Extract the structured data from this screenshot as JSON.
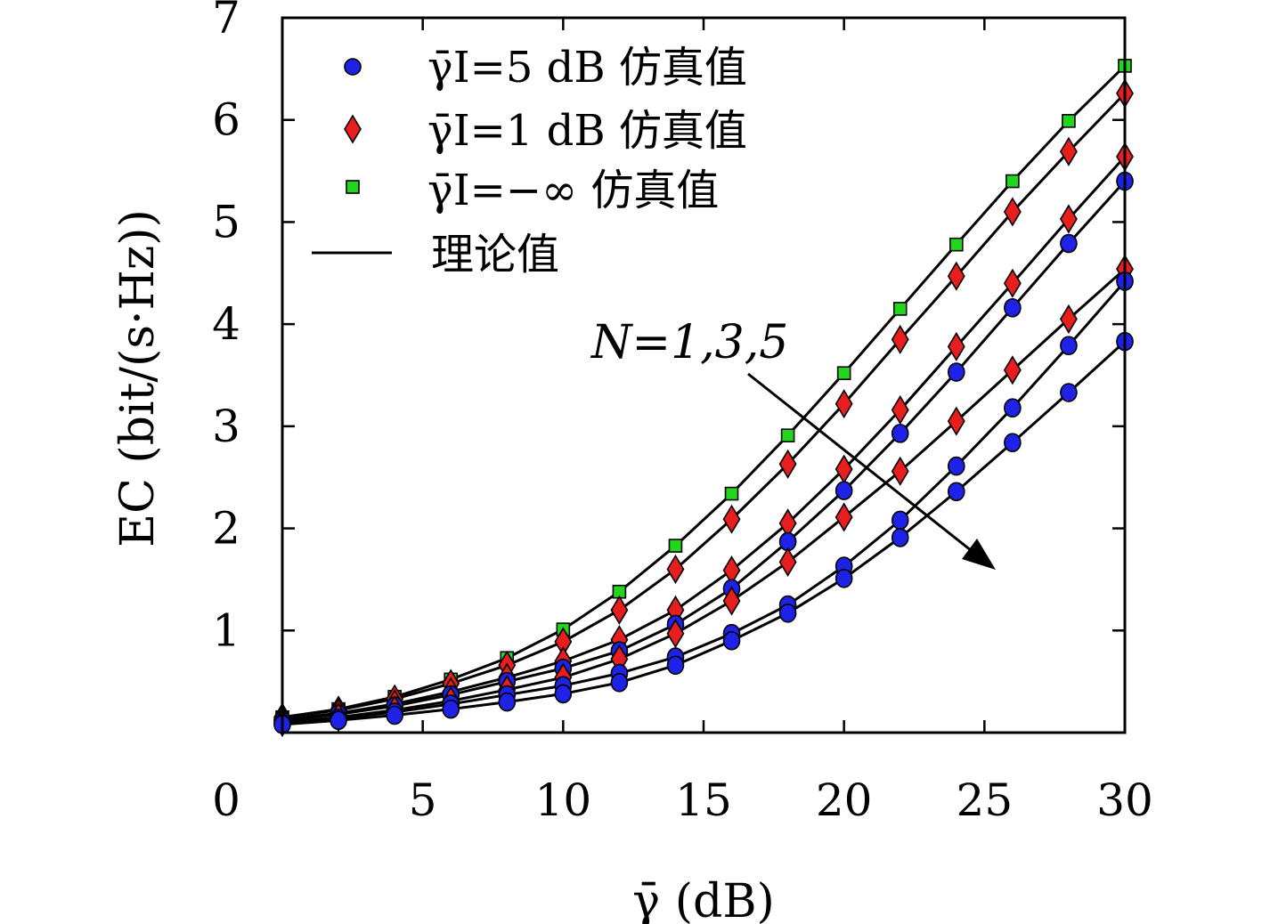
{
  "chart_data": {
    "type": "line",
    "title": "",
    "xlabel": "γ̄ (dB)",
    "ylabel": "EC (bit/(s·Hz))",
    "xlim": [
      0,
      30
    ],
    "ylim": [
      0,
      7
    ],
    "xticks": [
      0,
      5,
      10,
      15,
      20,
      25,
      30
    ],
    "yticks": [
      1,
      2,
      3,
      4,
      5,
      6,
      7
    ],
    "grid": false,
    "legend_position": "top-left",
    "legend": [
      {
        "label": "γ̄I=5 dB 仿真值",
        "marker": "circle",
        "color": "#1e22e6"
      },
      {
        "label": "γ̄I=1 dB 仿真值",
        "marker": "diamond",
        "color": "#e61e1e"
      },
      {
        "label": "γ̄I=−∞ 仿真值",
        "marker": "square",
        "color": "#22d61e"
      },
      {
        "label": "理论值",
        "marker": "line",
        "color": "#000000"
      }
    ],
    "annotation": "N=1,3,5",
    "x": [
      0,
      2,
      4,
      6,
      8,
      10,
      12,
      14,
      16,
      18,
      20,
      22,
      24,
      26,
      28,
      30
    ],
    "series": [
      {
        "name": "γ̄I=−∞ 仿真值",
        "marker": "square",
        "color": "#22d61e",
        "values": [
          0.15,
          0.23,
          0.35,
          0.52,
          0.73,
          1.01,
          1.38,
          1.83,
          2.34,
          2.91,
          3.52,
          4.15,
          4.78,
          5.4,
          5.99,
          6.53
        ]
      },
      {
        "name": "γ̄I=1 dB 仿真值",
        "marker": "diamond",
        "color": "#e61e1e",
        "values": [
          0.15,
          0.22,
          0.33,
          0.48,
          0.66,
          0.89,
          1.2,
          1.6,
          2.09,
          2.63,
          3.22,
          3.85,
          4.47,
          5.1,
          5.69,
          6.26
        ]
      },
      {
        "name": "γ̄I=1 dB 仿真值",
        "marker": "diamond",
        "color": "#e61e1e",
        "values": [
          0.13,
          0.19,
          0.28,
          0.4,
          0.54,
          0.7,
          0.91,
          1.2,
          1.59,
          2.05,
          2.58,
          3.16,
          3.78,
          4.4,
          5.03,
          5.64
        ]
      },
      {
        "name": "γ̄I=5 dB 仿真值",
        "marker": "circle",
        "color": "#1e22e6",
        "values": [
          0.12,
          0.18,
          0.26,
          0.37,
          0.5,
          0.63,
          0.8,
          1.06,
          1.41,
          1.87,
          2.37,
          2.93,
          3.53,
          4.16,
          4.79,
          5.4
        ]
      },
      {
        "name": "γ̄I=1 dB 仿真值",
        "marker": "diamond",
        "color": "#e61e1e",
        "values": [
          0.1,
          0.15,
          0.22,
          0.31,
          0.42,
          0.54,
          0.72,
          0.97,
          1.29,
          1.67,
          2.11,
          2.56,
          3.05,
          3.55,
          4.05,
          4.54
        ]
      },
      {
        "name": "γ̄I=5 dB 仿真值",
        "marker": "circle",
        "color": "#1e22e6",
        "values": [
          0.09,
          0.14,
          0.2,
          0.28,
          0.37,
          0.46,
          0.58,
          0.74,
          0.97,
          1.25,
          1.63,
          2.08,
          2.61,
          3.18,
          3.79,
          4.42
        ]
      },
      {
        "name": "γ̄I=5 dB 仿真值",
        "marker": "circle",
        "color": "#1e22e6",
        "values": [
          0.08,
          0.12,
          0.17,
          0.23,
          0.3,
          0.38,
          0.49,
          0.66,
          0.9,
          1.17,
          1.51,
          1.91,
          2.36,
          2.84,
          3.33,
          3.83
        ]
      }
    ]
  }
}
